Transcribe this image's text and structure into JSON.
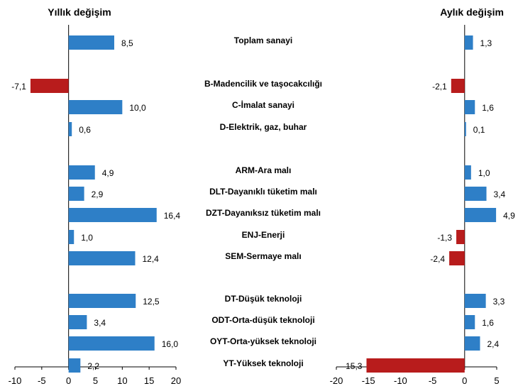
{
  "colors": {
    "positive": "#2E7FC7",
    "negative": "#B81C1C",
    "axis": "#000000"
  },
  "chart_data": [
    {
      "type": "bar",
      "orientation": "horizontal",
      "title": "Yıllık değişim",
      "xlim": [
        -10,
        20
      ],
      "xticks": [
        "-10",
        "-5",
        "0",
        "5",
        "10",
        "15",
        "20"
      ],
      "values": [
        8.5,
        -7.1,
        10.0,
        0.6,
        4.9,
        2.9,
        16.4,
        1.0,
        12.4,
        12.5,
        3.4,
        16.0,
        2.2
      ],
      "labels": [
        "8,5",
        "-7,1",
        "10,0",
        "0,6",
        "4,9",
        "2,9",
        "16,4",
        "1,0",
        "12,4",
        "12,5",
        "3,4",
        "16,0",
        "2,2"
      ]
    },
    {
      "type": "bar",
      "orientation": "horizontal",
      "title": "Aylık değişim",
      "xlim": [
        -20,
        5
      ],
      "xticks": [
        "-20",
        "-15",
        "-10",
        "-5",
        "0",
        "5"
      ],
      "values": [
        1.3,
        -2.1,
        1.6,
        0.1,
        1.0,
        3.4,
        4.9,
        -1.3,
        -2.4,
        3.3,
        1.6,
        2.4,
        -15.3
      ],
      "labels": [
        "1,3",
        "-2,1",
        "1,6",
        "0,1",
        "1,0",
        "3,4",
        "4,9",
        "-1,3",
        "-2,4",
        "3,3",
        "1,6",
        "2,4",
        "-15,3"
      ]
    }
  ],
  "categories": [
    "Toplam sanayi",
    "B-Madencilik ve taşocakcılığı",
    "C-İmalat sanayi",
    "D-Elektrik, gaz, buhar",
    "ARM-Ara malı",
    "DLT-Dayanıklı tüketim malı",
    "DZT-Dayanıksız tüketim malı",
    "ENJ-Enerji",
    "SEM-Sermaye malı",
    "DT-Düşük teknoloji",
    "ODT-Orta-düşük teknoloji",
    "OYT-Orta-yüksek teknoloji",
    "YT-Yüksek teknoloji"
  ]
}
